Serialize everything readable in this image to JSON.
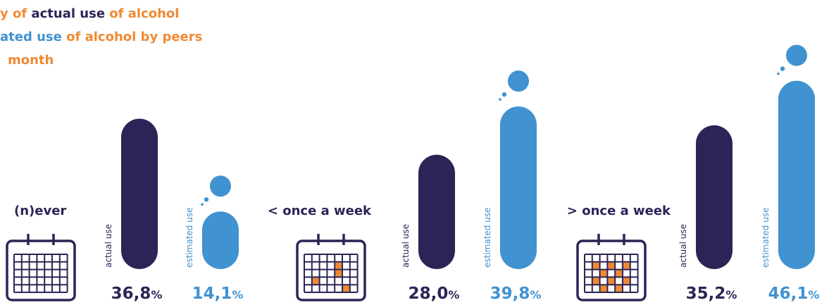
{
  "title": {
    "line1": {
      "p1": "y of ",
      "p2": "actual use",
      "p3": " of alcohol"
    },
    "line2": {
      "p1": "ated use",
      "p2": " of alcohol by peers"
    },
    "line3": "month"
  },
  "colors": {
    "actual": "#2b2557",
    "estimated": "#4192d0",
    "accent": "#ef8a34"
  },
  "chart_data": {
    "type": "bar",
    "categories": [
      "(n)ever",
      "< once a week",
      "> once a week"
    ],
    "series": [
      {
        "name": "actual use",
        "values": [
          36.8,
          28.0,
          35.2
        ]
      },
      {
        "name": "estimated use",
        "values": [
          14.1,
          39.8,
          46.1
        ]
      }
    ],
    "value_labels": {
      "actual use": [
        "36,8",
        "28,0",
        "35,2"
      ],
      "estimated use": [
        "14,1",
        "39,8",
        "46,1"
      ]
    },
    "unit": "%",
    "icons": [
      "calendar-empty-icon",
      "calendar-few-days-icon",
      "calendar-many-days-icon"
    ]
  }
}
